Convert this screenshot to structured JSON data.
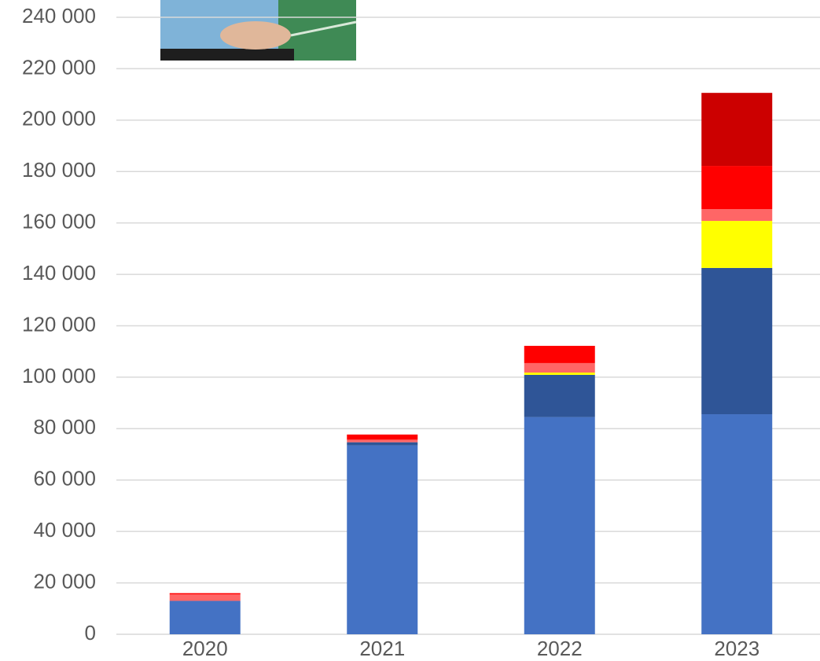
{
  "chart_data": {
    "type": "stacked-bar",
    "categories": [
      "2020",
      "2021",
      "2022",
      "2023"
    ],
    "series": [
      {
        "color": "#4472c4",
        "values": [
          13000,
          73500,
          84500,
          85600
        ]
      },
      {
        "color": "#2f5597",
        "values": [
          0,
          1200,
          16400,
          56900
        ]
      },
      {
        "color": "#ffff00",
        "values": [
          0,
          0,
          900,
          18300
        ]
      },
      {
        "color": "#ff6666",
        "values": [
          2500,
          1000,
          3700,
          4600
        ]
      },
      {
        "color": "#ff0000",
        "values": [
          500,
          2000,
          6700,
          16800
        ]
      },
      {
        "color": "#cc0000",
        "values": [
          0,
          0,
          0,
          28400
        ]
      }
    ],
    "ylim": [
      0,
      240000
    ],
    "yticks": [
      0,
      {
        "value": 20000,
        "label": "20 000"
      },
      {
        "value": 40000,
        "label": "40 000"
      },
      {
        "value": 60000,
        "label": "60 000"
      },
      {
        "value": 80000,
        "label": "80 000"
      },
      {
        "value": 100000,
        "label": "100 000"
      },
      {
        "value": 120000,
        "label": "120 000"
      },
      {
        "value": 140000,
        "label": "140 000"
      },
      {
        "value": 160000,
        "label": "160 000"
      },
      {
        "value": 180000,
        "label": "180 000"
      },
      {
        "value": 200000,
        "label": "200 000"
      },
      {
        "value": 220000,
        "label": "220 000"
      },
      {
        "value": 240000,
        "label": "240 000"
      }
    ],
    "grid": true
  }
}
